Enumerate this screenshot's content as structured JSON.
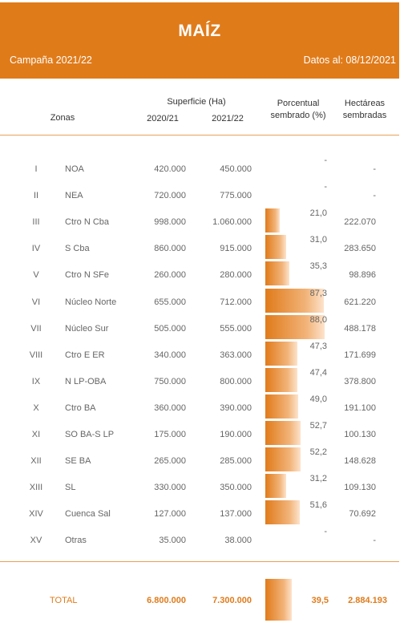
{
  "header": {
    "title": "MAÍZ",
    "campaign": "Campaña 2021/22",
    "date": "Datos al: 08/12/2021"
  },
  "columns": {
    "zones": "Zonas",
    "surface": "Superficie (Ha)",
    "year_a": "2020/21",
    "year_b": "2021/22",
    "pct": "Porcentual sembrado (%)",
    "ha": "Hectáreas sembradas"
  },
  "accent_color": "#e07b1a",
  "rows": [
    {
      "roman": "I",
      "zone": "NOA",
      "a": "420.000",
      "b": "450.000",
      "pct": "-",
      "ha": "-",
      "pct_value": 0
    },
    {
      "roman": "II",
      "zone": "NEA",
      "a": "720.000",
      "b": "775.000",
      "pct": "-",
      "ha": "-",
      "pct_value": 0
    },
    {
      "roman": "III",
      "zone": "Ctro N Cba",
      "a": "998.000",
      "b": "1.060.000",
      "pct": "21,0",
      "ha": "222.070",
      "pct_value": 21.0
    },
    {
      "roman": "IV",
      "zone": "S Cba",
      "a": "860.000",
      "b": "915.000",
      "pct": "31,0",
      "ha": "283.650",
      "pct_value": 31.0
    },
    {
      "roman": "V",
      "zone": "Ctro N SFe",
      "a": "260.000",
      "b": "280.000",
      "pct": "35,3",
      "ha": "98.896",
      "pct_value": 35.3
    },
    {
      "roman": "VI",
      "zone": "Núcleo Norte",
      "a": "655.000",
      "b": "712.000",
      "pct": "87,3",
      "ha": "621.220",
      "pct_value": 87.3
    },
    {
      "roman": "VII",
      "zone": "Núcleo Sur",
      "a": "505.000",
      "b": "555.000",
      "pct": "88,0",
      "ha": "488.178",
      "pct_value": 88.0
    },
    {
      "roman": "VIII",
      "zone": "Ctro E ER",
      "a": "340.000",
      "b": "363.000",
      "pct": "47,3",
      "ha": "171.699",
      "pct_value": 47.3
    },
    {
      "roman": "IX",
      "zone": "N LP-OBA",
      "a": "750.000",
      "b": "800.000",
      "pct": "47,4",
      "ha": "378.800",
      "pct_value": 47.4
    },
    {
      "roman": "X",
      "zone": "Ctro BA",
      "a": "360.000",
      "b": "390.000",
      "pct": "49,0",
      "ha": "191.100",
      "pct_value": 49.0
    },
    {
      "roman": "XI",
      "zone": "SO BA-S LP",
      "a": "175.000",
      "b": "190.000",
      "pct": "52,7",
      "ha": "100.130",
      "pct_value": 52.7
    },
    {
      "roman": "XII",
      "zone": "SE BA",
      "a": "265.000",
      "b": "285.000",
      "pct": "52,2",
      "ha": "148.628",
      "pct_value": 52.2
    },
    {
      "roman": "XIII",
      "zone": "SL",
      "a": "330.000",
      "b": "350.000",
      "pct": "31,2",
      "ha": "109.130",
      "pct_value": 31.2
    },
    {
      "roman": "XIV",
      "zone": "Cuenca Sal",
      "a": "127.000",
      "b": "137.000",
      "pct": "51,6",
      "ha": "70.692",
      "pct_value": 51.6
    },
    {
      "roman": "XV",
      "zone": "Otras",
      "a": "35.000",
      "b": "38.000",
      "pct": "-",
      "ha": "-",
      "pct_value": 0
    }
  ],
  "total": {
    "label": "TOTAL",
    "a": "6.800.000",
    "b": "7.300.000",
    "pct": "39,5",
    "ha": "2.884.193",
    "pct_value": 39.5
  }
}
